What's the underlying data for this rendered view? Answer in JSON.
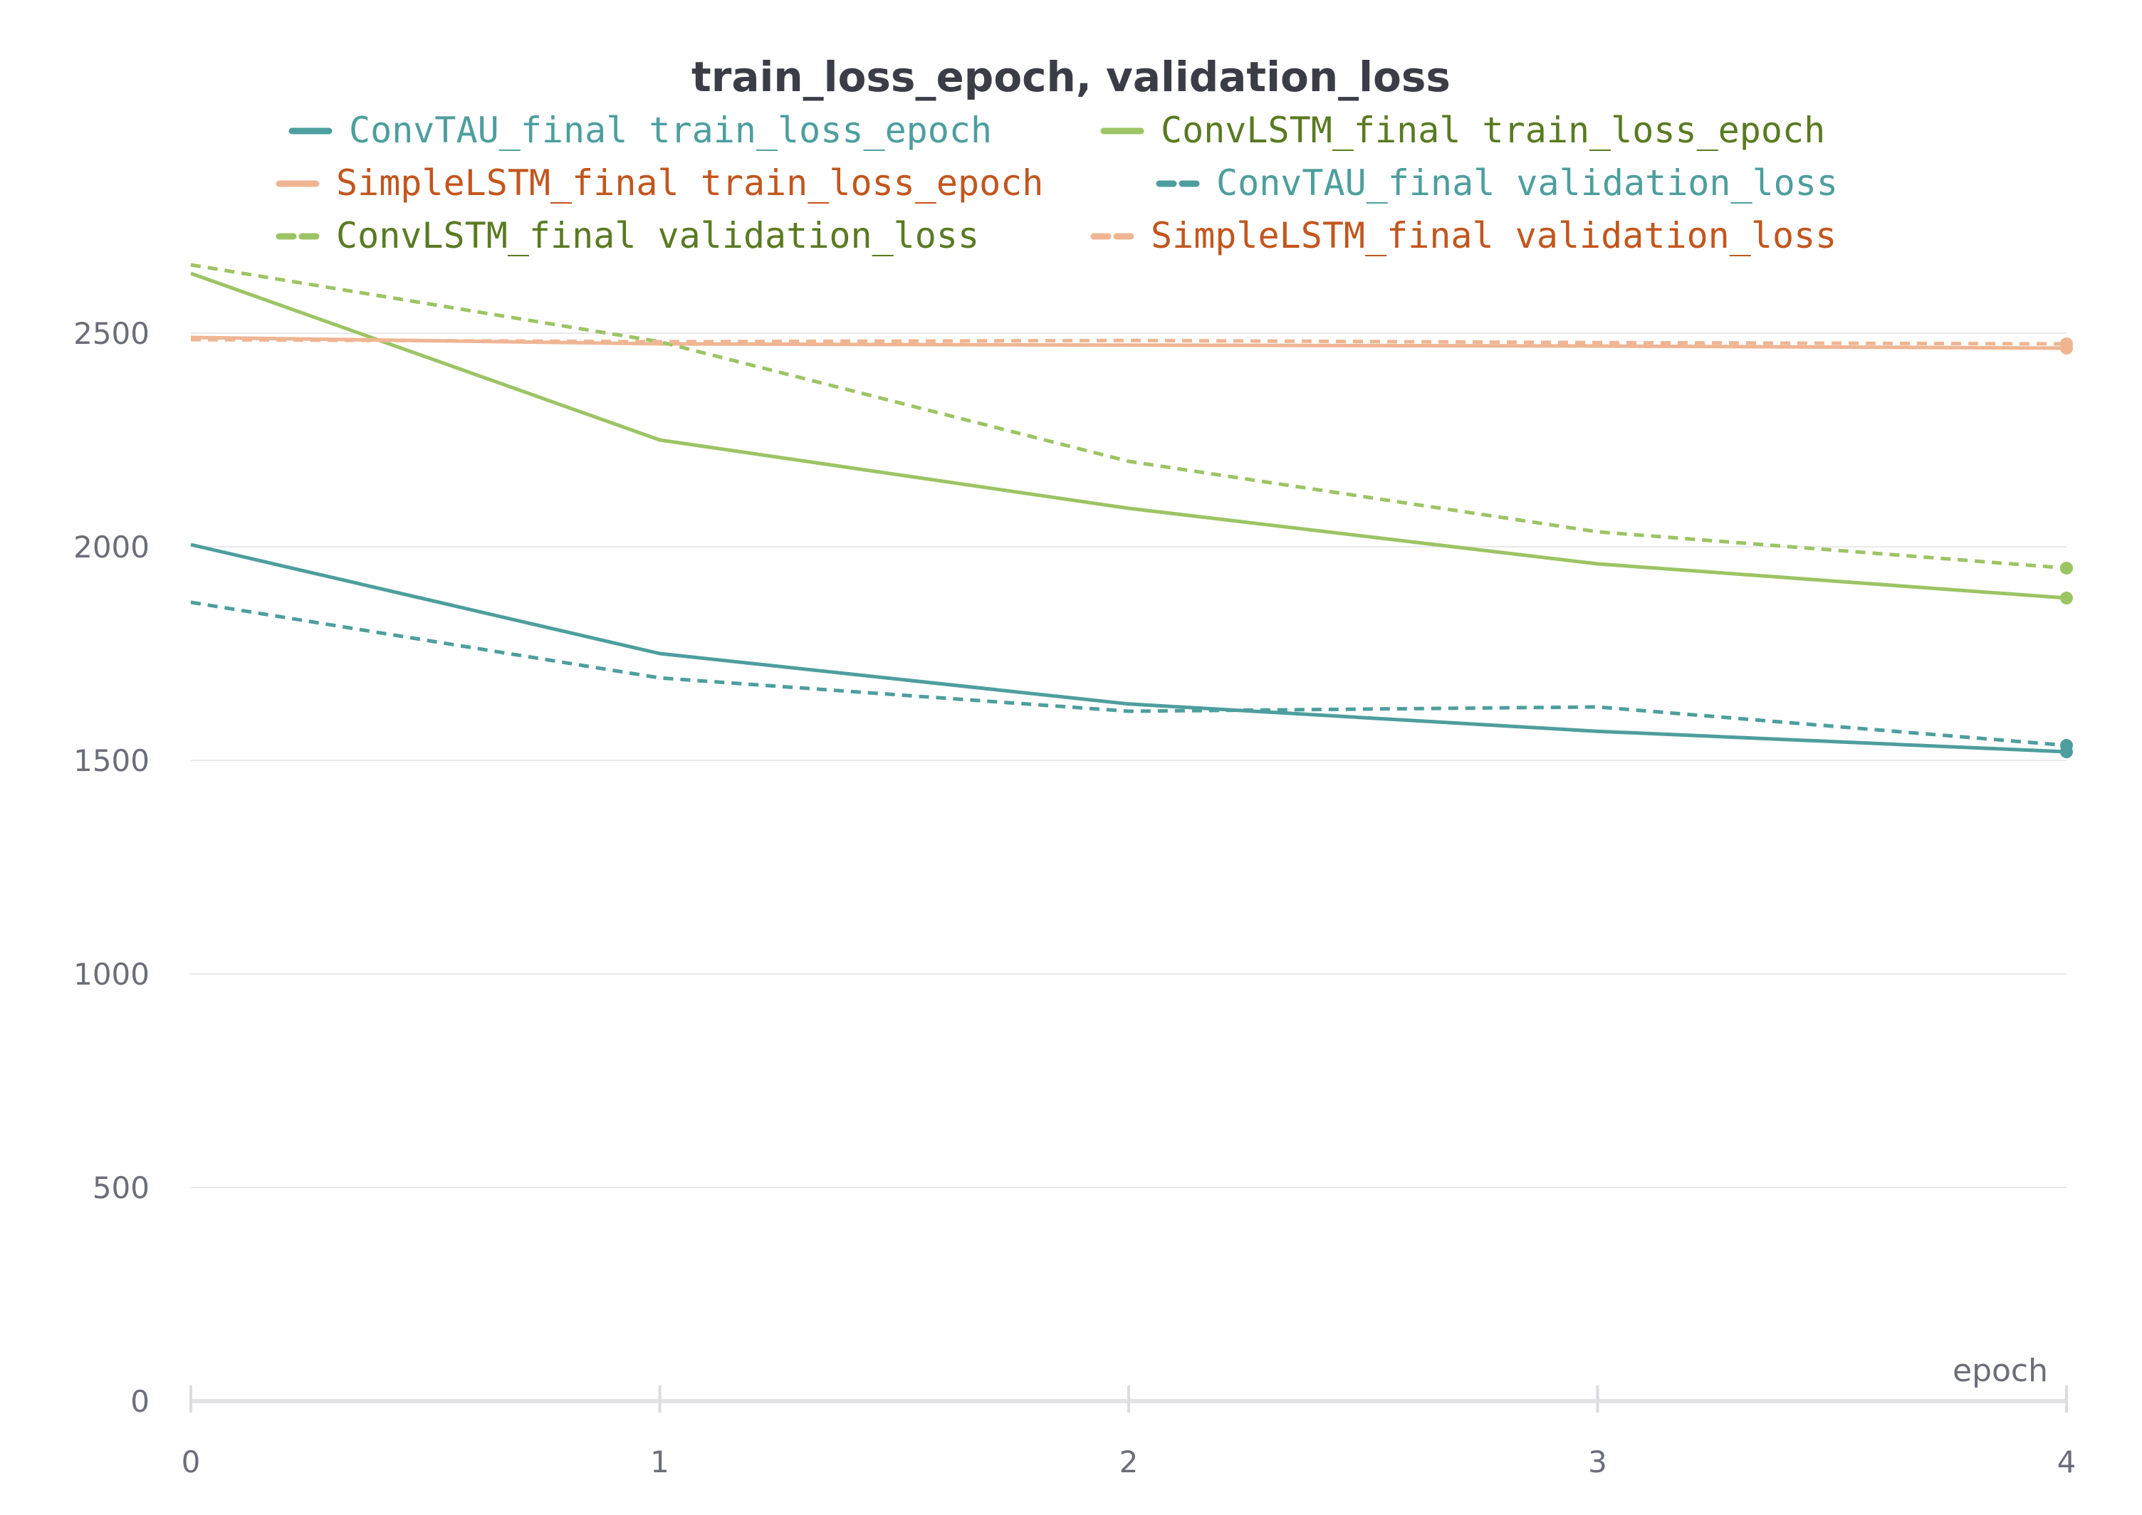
{
  "chart_data": {
    "type": "line",
    "title": "train_loss_epoch, validation_loss",
    "xlabel": "epoch",
    "ylabel": "",
    "x": [
      0,
      1,
      2,
      3,
      4
    ],
    "xticks": [
      "0",
      "1",
      "2",
      "3",
      "4"
    ],
    "yticks": [
      "0",
      "500",
      "1000",
      "1500",
      "2000",
      "2500"
    ],
    "ylim": [
      0,
      2650
    ],
    "xlim": [
      0,
      4
    ],
    "grid": true,
    "legend_position": "top",
    "series": [
      {
        "name": "ConvTAU_final train_loss_epoch",
        "values": [
          2005,
          1750,
          1632,
          1568,
          1520
        ],
        "color": "#4e9e9e",
        "text_color": "#4e9e9e",
        "dash": "solid"
      },
      {
        "name": "ConvLSTM_final train_loss_epoch",
        "values": [
          2640,
          2250,
          2090,
          1960,
          1880
        ],
        "color": "#9cc464",
        "text_color": "#5a7a22",
        "dash": "solid"
      },
      {
        "name": "SimpleLSTM_final train_loss_epoch",
        "values": [
          2490,
          2475,
          2472,
          2470,
          2465
        ],
        "color": "#efb593",
        "text_color": "#c2561e",
        "dash": "solid"
      },
      {
        "name": "ConvTAU_final validation_loss",
        "values": [
          1870,
          1693,
          1615,
          1625,
          1535
        ],
        "color": "#4e9e9e",
        "text_color": "#4e9e9e",
        "dash": "dashed"
      },
      {
        "name": "ConvLSTM_final validation_loss",
        "values": [
          2660,
          2480,
          2200,
          2035,
          1950
        ],
        "color": "#9cc464",
        "text_color": "#5a7a22",
        "dash": "dashed"
      },
      {
        "name": "SimpleLSTM_final validation_loss",
        "values": [
          2485,
          2480,
          2483,
          2478,
          2475
        ],
        "color": "#efb593",
        "text_color": "#c2561e",
        "dash": "dashed"
      }
    ]
  }
}
